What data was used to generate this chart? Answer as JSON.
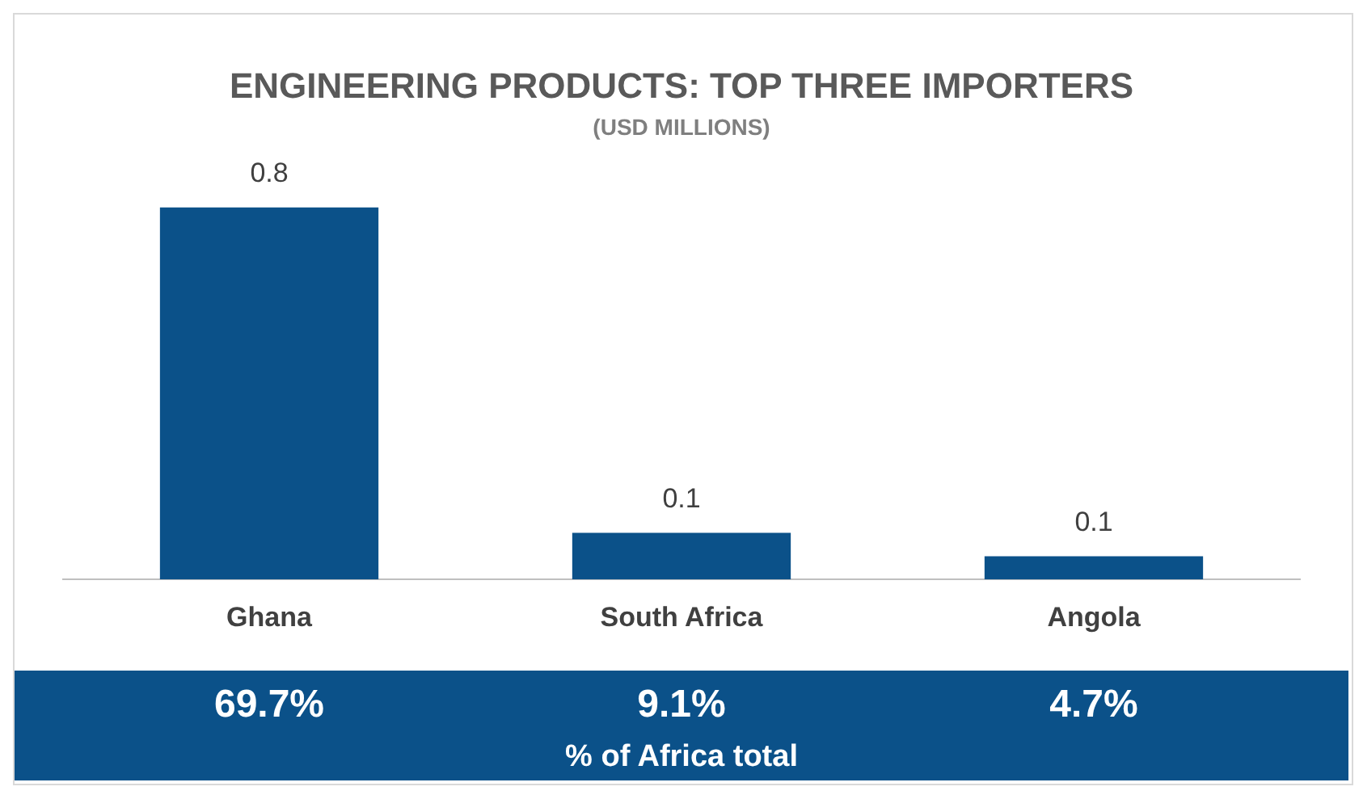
{
  "chart_data": {
    "type": "bar",
    "title": "ENGINEERING PRODUCTS: TOP THREE IMPORTERS",
    "subtitle": "(USD MILLIONS)",
    "categories": [
      "Ghana",
      "South Africa",
      "Angola"
    ],
    "values": [
      0.8,
      0.1,
      0.05
    ],
    "value_labels": [
      "0.8",
      "0.1",
      "0.1"
    ],
    "color": "#0b5189",
    "legend": false,
    "grid": false,
    "annotations": [
      "69.7%",
      "9.1%",
      "4.7%",
      "% of Africa total"
    ]
  }
}
